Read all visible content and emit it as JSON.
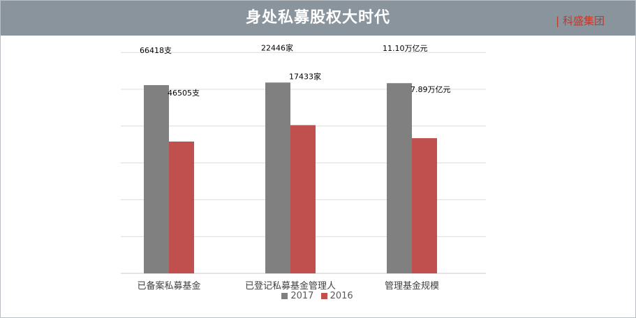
{
  "header": {
    "title": "身处私募股权大时代",
    "brand": "| 科盛集团"
  },
  "colors": {
    "header_bg": "#8a949d",
    "series_2017": "#808080",
    "series_2016": "#c0504d",
    "brand": "#c0392b"
  },
  "chart_data": {
    "type": "bar",
    "title": "",
    "xlabel": "",
    "ylabel": "",
    "categories": [
      "已备案私募基金",
      "已登记私募基金管理人",
      "管理基金规模"
    ],
    "series": [
      {
        "name": "2017",
        "values": [
          66418,
          22446,
          11.1
        ],
        "labels": [
          "66418支",
          "22446家",
          "11.10万亿元"
        ]
      },
      {
        "name": "2016",
        "values": [
          46505,
          17433,
          7.89
        ],
        "labels": [
          "46505支",
          "17433家",
          "7.89万亿元"
        ]
      }
    ],
    "grid": true,
    "legend": "bottom"
  }
}
